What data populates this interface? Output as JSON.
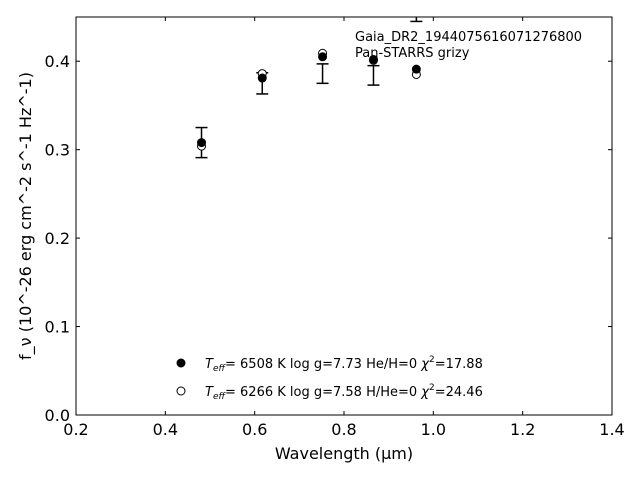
{
  "chart_data": {
    "type": "scatter",
    "annotations": [
      "Gaia_DR2_1944075616071276800",
      "Pan-STARRS grizy"
    ],
    "xlabel": "Wavelength (μm)",
    "ylabel": "f_ν (10^-26 erg cm^-2 s^-1 Hz^-1)",
    "xlim": [
      0.2,
      1.4
    ],
    "ylim": [
      0.0,
      0.45
    ],
    "xticks": [
      "0.2",
      "0.4",
      "0.6",
      "0.8",
      "1.0",
      "1.2",
      "1.4"
    ],
    "yticks": [
      "0.0",
      "0.1",
      "0.2",
      "0.3",
      "0.4"
    ],
    "grid": false,
    "legend_position": "lower-center",
    "observed": {
      "x": [
        0.481,
        0.617,
        0.752,
        0.866,
        0.962
      ],
      "y": [
        0.308,
        0.375,
        0.386,
        0.384,
        0.47
      ],
      "yerr": [
        0.017,
        0.012,
        0.011,
        0.011,
        0.025
      ]
    },
    "series": [
      {
        "name": "Teff=6508 K log g=7.73 He/H=0 χ2=17.88",
        "marker": "filled-circle",
        "x": [
          0.481,
          0.617,
          0.752,
          0.866,
          0.962
        ],
        "y": [
          0.308,
          0.381,
          0.405,
          0.402,
          0.391
        ]
      },
      {
        "name": "Teff=6266 K log g=7.58 H/He=0 χ2=24.46",
        "marker": "open-circle",
        "x": [
          0.481,
          0.617,
          0.752,
          0.866,
          0.962
        ],
        "y": [
          0.304,
          0.386,
          0.409,
          0.401,
          0.385
        ]
      }
    ],
    "legend": [
      {
        "teff_label": "T",
        "teff_sub": "eff",
        "text": "=  6508 K  log g=7.73  He/H=0  ",
        "chi_label": "χ",
        "chi_sup": "2",
        "chi_value": "=17.88"
      },
      {
        "teff_label": "T",
        "teff_sub": "eff",
        "text": "=  6266 K  log g=7.58  H/He=0  ",
        "chi_label": "χ",
        "chi_sup": "2",
        "chi_value": "=24.46"
      }
    ]
  }
}
